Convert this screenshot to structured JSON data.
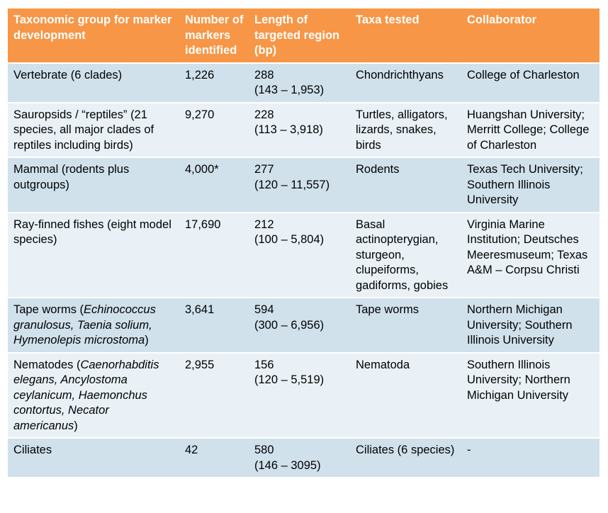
{
  "headers": [
    "Taxonomic group for marker development",
    "Number of markers identified",
    "Length of targeted region (bp)",
    "Taxa tested",
    "Collaborator"
  ],
  "rows": [
    {
      "group": "Vertebrate (6 clades)",
      "markers": "1,226",
      "length": "288",
      "range": "(143 – 1,953)",
      "taxa": "Chondrichthyans",
      "collaborator": "College of Charleston"
    },
    {
      "group": "Sauropsids / “reptiles” (21 species, all major clades of reptiles including birds)",
      "markers": "9,270",
      "length": "228",
      "range": "(113 – 3,918)",
      "taxa": "Turtles, alligators, lizards, snakes, birds",
      "collaborator": "Huangshan University; Merritt College; College of Charleston"
    },
    {
      "group": "Mammal (rodents plus outgroups)",
      "markers": "4,000*",
      "length": "277",
      "range": "(120 – 11,557)",
      "taxa": "Rodents",
      "collaborator": "Texas Tech University; Southern Illinois University"
    },
    {
      "group": "Ray-finned fishes (eight model species)",
      "markers": "17,690",
      "length": "212",
      "range": "(100 – 5,804)",
      "taxa": "Basal actinopterygian, sturgeon, clupeiforms, gadiforms, gobies",
      "collaborator": "Virginia Marine Institution; Deutsches Meeresmuseum; Texas A&M – Corpsu Christi"
    },
    {
      "group_prefix": "Tape worms (",
      "group_italic": "Echinococcus granulosus, Taenia solium, Hymenolepis microstoma",
      "group_suffix": ")",
      "markers": "3,641",
      "length": "594",
      "range": "(300 – 6,956)",
      "taxa": "Tape worms",
      "collaborator": "Northern Michigan University; Southern Illinois University"
    },
    {
      "group_prefix": "Nematodes (",
      "group_italic": "Caenorhabditis elegans, Ancylostoma ceylanicum, Haemonchus contortus, Necator americanus",
      "group_suffix": ")",
      "markers": "2,955",
      "length": "156",
      "range": "(120 – 5,519)",
      "taxa": "Nematoda",
      "collaborator": "Southern Illinois University; Northern Michigan University"
    },
    {
      "group": "Ciliates",
      "markers": "42",
      "length": "580",
      "range": "(146 – 3095)",
      "taxa": "Ciliates (6 species)",
      "collaborator": "-"
    }
  ]
}
